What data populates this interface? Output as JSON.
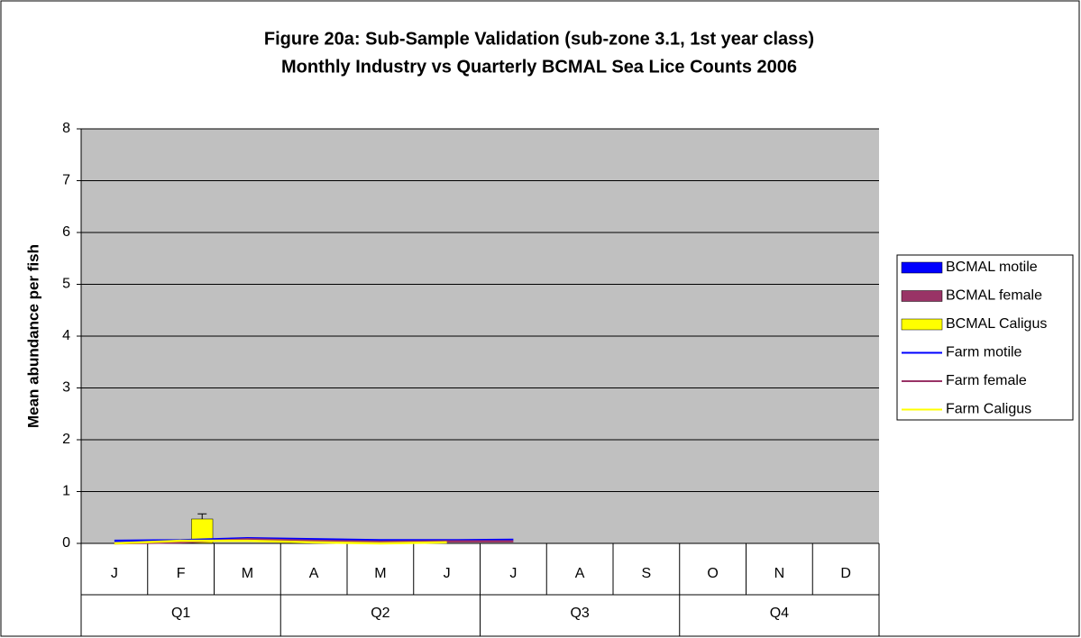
{
  "chart_data": {
    "type": "bar",
    "title": [
      "Figure 20a: Sub-Sample Validation (sub-zone 3.1, 1st year class)",
      "Monthly Industry vs Quarterly BCMAL Sea Lice Counts 2006"
    ],
    "y_label": "Mean abundance per fish",
    "categories": [
      "J",
      "F",
      "M",
      "A",
      "M",
      "J",
      "J",
      "A",
      "S",
      "O",
      "N",
      "D"
    ],
    "quarters": [
      "Q1",
      "Q2",
      "Q3",
      "Q4"
    ],
    "ylim": [
      0,
      8
    ],
    "yticks": [
      0,
      1,
      2,
      3,
      4,
      5,
      6,
      7,
      8
    ],
    "grid": true,
    "legend": "right",
    "series": [
      {
        "name": "BCMAL motile",
        "color": "#0000ff",
        "kind": "bar",
        "values": [
          null,
          null,
          null,
          null,
          null,
          null,
          null,
          null,
          null,
          null,
          null,
          null
        ]
      },
      {
        "name": "BCMAL female",
        "color": "#993366",
        "kind": "bar",
        "values": [
          null,
          null,
          null,
          null,
          null,
          null,
          null,
          null,
          null,
          null,
          null,
          null
        ]
      },
      {
        "name": "BCMAL Caligus",
        "color": "#ffff00",
        "kind": "bar",
        "values": [
          null,
          0.47,
          null,
          null,
          null,
          null,
          null,
          null,
          null,
          null,
          null,
          null
        ],
        "errors": [
          null,
          0.1,
          null,
          null,
          null,
          null,
          null,
          null,
          null,
          null,
          null,
          null
        ]
      },
      {
        "name": "Farm motile",
        "color": "#0000ff",
        "kind": "line",
        "values": [
          0.05,
          0.06,
          0.1,
          0.08,
          0.06,
          0.06,
          0.07,
          null,
          null,
          null,
          null,
          null
        ]
      },
      {
        "name": "Farm female",
        "color": "#993366",
        "kind": "line",
        "values": [
          0.0,
          0.02,
          0.08,
          0.05,
          0.03,
          0.04,
          0.04,
          null,
          null,
          null,
          null,
          null
        ]
      },
      {
        "name": "Farm Caligus",
        "color": "#ffff00",
        "kind": "line",
        "values": [
          0.0,
          0.05,
          0.05,
          0.02,
          0.0,
          0.02,
          null,
          null,
          null,
          null,
          null,
          null
        ]
      }
    ]
  }
}
